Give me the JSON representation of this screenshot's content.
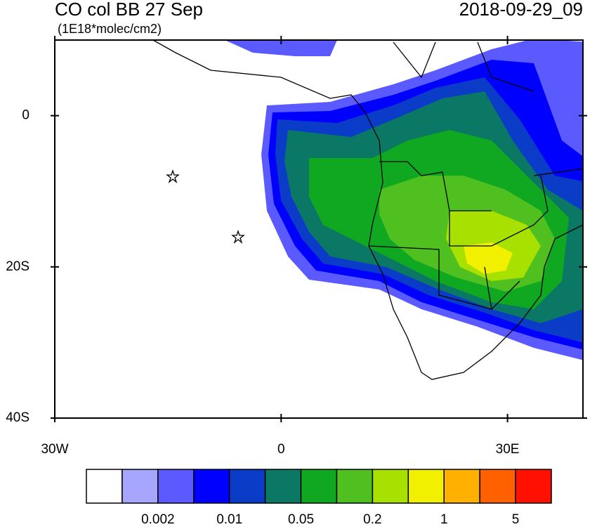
{
  "header": {
    "title": "CO col BB 27 Sep",
    "units": "(1E18*molec/cm2)",
    "date": "2018-09-29_09"
  },
  "map": {
    "xlim": [
      -30,
      40
    ],
    "ylim": [
      -40,
      10
    ],
    "xticks": [
      {
        "value": -30,
        "label": "30W"
      },
      0,
      {
        "value": 30,
        "label": "30E"
      }
    ],
    "yticks": [
      0,
      {
        "value": -20,
        "label": "20S"
      },
      {
        "value": -40,
        "label": "40S"
      }
    ]
  },
  "colorbar": {
    "colors": [
      "#ffffff",
      "#a6a6ff",
      "#5a5aff",
      "#0000ff",
      "#0a3cc8",
      "#0a7864",
      "#10a820",
      "#50c020",
      "#a8e000",
      "#f0f000",
      "#ffb000",
      "#ff6000",
      "#ff1000"
    ],
    "labels": [
      null,
      "0.002",
      null,
      "0.01",
      null,
      "0.05",
      null,
      "0.2",
      null,
      "1",
      null,
      "5"
    ]
  }
}
